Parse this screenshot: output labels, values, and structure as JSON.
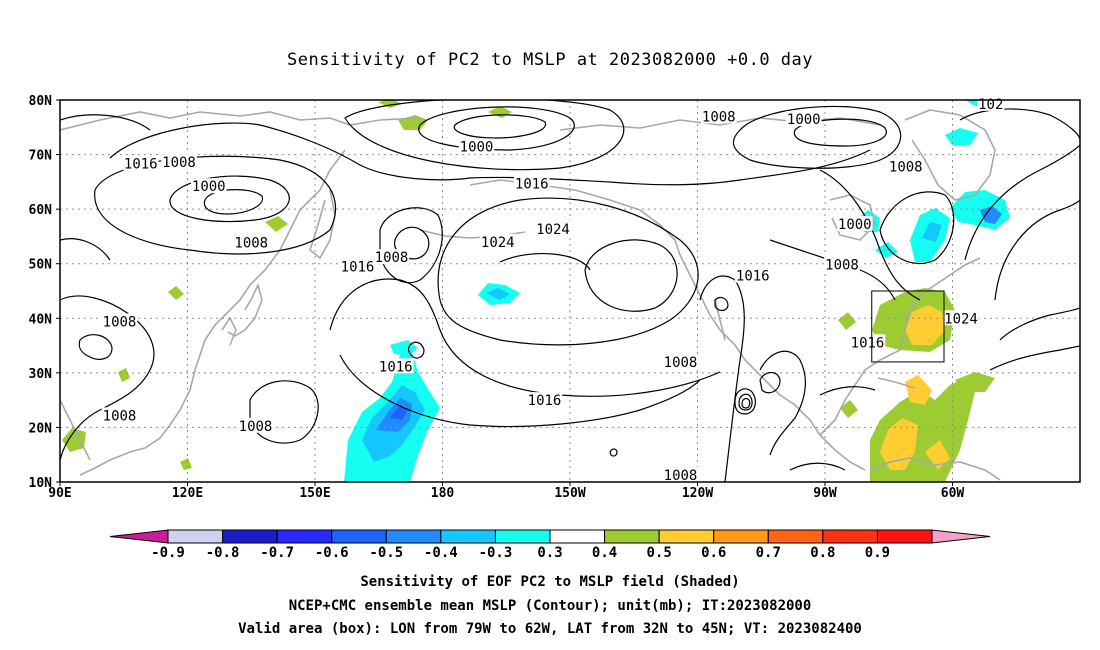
{
  "title": "Sensitivity of PC2 to MSLP at 2023082000 +0.0 day",
  "lat_labels": [
    "80N",
    "70N",
    "60N",
    "50N",
    "40N",
    "30N",
    "20N",
    "10N"
  ],
  "lon_labels": [
    "90E",
    "120E",
    "150E",
    "180",
    "150W",
    "120W",
    "90W",
    "60W"
  ],
  "isobar_labels": [
    {
      "text": "1008",
      "lon": 245,
      "lat": 77.0
    },
    {
      "text": "1000",
      "lon": 188,
      "lat": 71.5
    },
    {
      "text": "1000",
      "lon": 265,
      "lat": 76.5
    },
    {
      "text": "1008",
      "lon": 289,
      "lat": 67.8
    },
    {
      "text": "1016",
      "lon": 109,
      "lat": 68.4
    },
    {
      "text": "1008",
      "lon": 118,
      "lat": 68.6
    },
    {
      "text": "1000",
      "lon": 125,
      "lat": 64.2
    },
    {
      "text": "1016",
      "lon": 201,
      "lat": 64.7
    },
    {
      "text": "1024",
      "lon": 206,
      "lat": 56.4
    },
    {
      "text": "1024",
      "lon": 193,
      "lat": 54.0
    },
    {
      "text": "1000",
      "lon": 277,
      "lat": 57.3
    },
    {
      "text": "1008",
      "lon": 135,
      "lat": 53.9
    },
    {
      "text": "1008",
      "lon": 168,
      "lat": 51.2
    },
    {
      "text": "1016",
      "lon": 160,
      "lat": 49.5
    },
    {
      "text": "1008",
      "lon": 274,
      "lat": 49.9
    },
    {
      "text": "1016",
      "lon": 253,
      "lat": 47.8
    },
    {
      "text": "1008",
      "lon": 104,
      "lat": 39.4
    },
    {
      "text": "1024",
      "lon": 302,
      "lat": 40.0
    },
    {
      "text": "1016",
      "lon": 280,
      "lat": 35.6
    },
    {
      "text": "1016",
      "lon": 169,
      "lat": 31.2
    },
    {
      "text": "1008",
      "lon": 236,
      "lat": 32.0
    },
    {
      "text": "1016",
      "lon": 204,
      "lat": 25.0
    },
    {
      "text": "1008",
      "lon": 104,
      "lat": 22.2
    },
    {
      "text": "1008",
      "lon": 136,
      "lat": 20.3
    },
    {
      "text": "1008",
      "lon": 236,
      "lat": 11.3
    },
    {
      "text": "102",
      "lon": 309,
      "lat": 79.3
    }
  ],
  "valid_box": {
    "lon_w": 281,
    "lon_e": 298,
    "lat_s": 32,
    "lat_n": 45
  },
  "colorbar_labels": [
    "-0.9",
    "-0.8",
    "-0.7",
    "-0.6",
    "-0.5",
    "-0.4",
    "-0.3",
    "0.3",
    "0.4",
    "0.5",
    "0.6",
    "0.7",
    "0.8",
    "0.9"
  ],
  "colorbar_colors": [
    "#d0d0f0",
    "#1c1cc8",
    "#2828ff",
    "#1c64ff",
    "#1e8cff",
    "#14c8ff",
    "#14fff0",
    "#ffffff",
    "#9ccc32",
    "#ffcc32",
    "#ff9a14",
    "#ff6414",
    "#ff3214",
    "#ff1414"
  ],
  "colorbar_end_colors": {
    "low": "#c81e96",
    "high": "#f5a0c8"
  },
  "legend_lines": [
    "Sensitivity of EOF PC2 to MSLP field (Shaded)",
    "NCEP+CMC ensemble mean MSLP (Contour); unit(mb); IT:2023082000",
    "Valid area (box): LON from 79W to 62W, LAT from 32N to 45N; VT: 2023082400"
  ],
  "colors": {
    "contour": "#000000",
    "land": "#a8a8a8",
    "grid": "#909090"
  }
}
